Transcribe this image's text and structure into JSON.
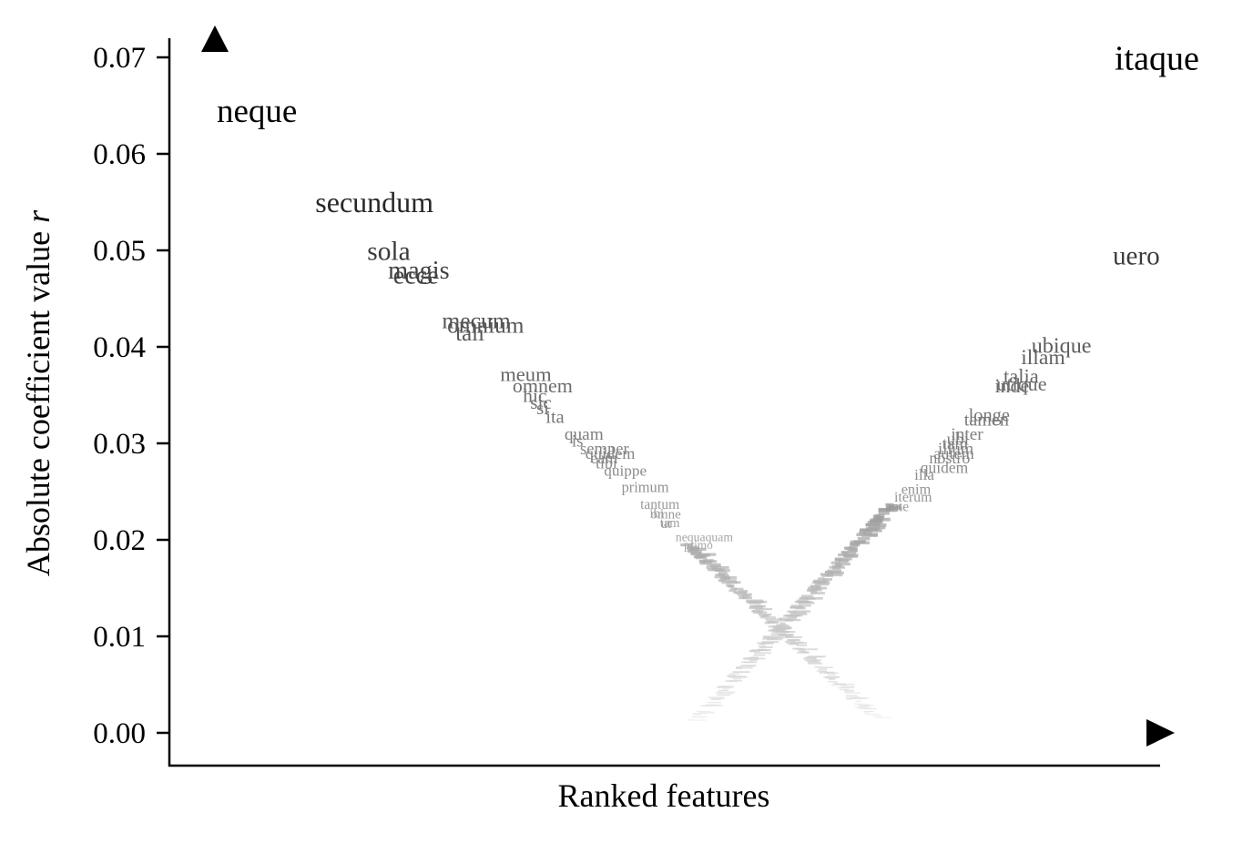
{
  "chart_data": {
    "type": "scatter",
    "xlabel": "Ranked features",
    "ylabel": "Absolute coefficient value ",
    "ylabel_italic": "r",
    "ylim": [
      0,
      0.072
    ],
    "yticks": [
      "0.00",
      "0.01",
      "0.02",
      "0.03",
      "0.04",
      "0.05",
      "0.06",
      "0.07"
    ],
    "grid": false,
    "left_series": [
      {
        "label": "neque",
        "r": 0.0645
      },
      {
        "label": "secundum",
        "r": 0.055
      },
      {
        "label": "sola",
        "r": 0.05
      },
      {
        "label": "magis",
        "r": 0.048
      },
      {
        "label": "ecce",
        "r": 0.0475
      },
      {
        "label": "mecum",
        "r": 0.0428
      },
      {
        "label": "omnium",
        "r": 0.0423
      },
      {
        "label": "tali",
        "r": 0.0415
      },
      {
        "label": "meum",
        "r": 0.0372
      },
      {
        "label": "omnem",
        "r": 0.036
      },
      {
        "label": "hic",
        "r": 0.035
      },
      {
        "label": "sic",
        "r": 0.0343
      },
      {
        "label": "si",
        "r": 0.0337
      },
      {
        "label": "ita",
        "r": 0.0328
      },
      {
        "label": "quam",
        "r": 0.031
      },
      {
        "label": "is",
        "r": 0.0303
      },
      {
        "label": "semper",
        "r": 0.0295
      },
      {
        "label": "quidem",
        "r": 0.029
      },
      {
        "label": "eam",
        "r": 0.0285
      },
      {
        "label": "tibi",
        "r": 0.028
      },
      {
        "label": "quippe",
        "r": 0.0272
      },
      {
        "label": "primum",
        "r": 0.0255
      },
      {
        "label": "tantum",
        "r": 0.0237
      },
      {
        "label": "ibi",
        "r": 0.0228
      },
      {
        "label": "omne",
        "r": 0.0227
      },
      {
        "label": "tam",
        "r": 0.0218
      },
      {
        "label": "ut",
        "r": 0.0217
      },
      {
        "label": "nequaquam",
        "r": 0.0203
      },
      {
        "label": "primo",
        "r": 0.0195
      }
    ],
    "right_series": [
      {
        "label": "itaque",
        "r": 0.07
      },
      {
        "label": "uero",
        "r": 0.0495
      },
      {
        "label": "ubique",
        "r": 0.0402
      },
      {
        "label": "illam",
        "r": 0.039
      },
      {
        "label": "talia",
        "r": 0.037
      },
      {
        "label": "utique",
        "r": 0.0362
      },
      {
        "label": "inde",
        "r": 0.036
      },
      {
        "label": "longe",
        "r": 0.033
      },
      {
        "label": "tamen",
        "r": 0.0325
      },
      {
        "label": "inter",
        "r": 0.031
      },
      {
        "label": "ubi",
        "r": 0.0305
      },
      {
        "label": "tam",
        "r": 0.03
      },
      {
        "label": "illum",
        "r": 0.0295
      },
      {
        "label": "autem",
        "r": 0.029
      },
      {
        "label": "nostro",
        "r": 0.0285
      },
      {
        "label": "quidem",
        "r": 0.0275
      },
      {
        "label": "illa",
        "r": 0.0268
      },
      {
        "label": "enim",
        "r": 0.0253
      },
      {
        "label": "iterum",
        "r": 0.0245
      },
      {
        "label": "ante",
        "r": 0.0235
      }
    ]
  }
}
